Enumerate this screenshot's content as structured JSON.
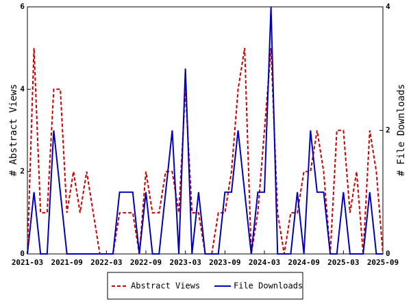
{
  "chart_data": {
    "type": "line",
    "categories": [
      "2021-03",
      null,
      null,
      null,
      null,
      null,
      "2021-09",
      null,
      null,
      null,
      null,
      null,
      "2022-03",
      null,
      null,
      null,
      null,
      null,
      "2022-09",
      null,
      null,
      null,
      null,
      null,
      "2023-03",
      null,
      null,
      null,
      null,
      null,
      "2023-09",
      null,
      null,
      null,
      null,
      null,
      "2024-03",
      null,
      null,
      null,
      null,
      null,
      "2024-09",
      null,
      null,
      null,
      null,
      null,
      "2025-03",
      null,
      null,
      null,
      null,
      null,
      "2025-09"
    ],
    "y_label": "# Abstract Views",
    "y2_label": "# File Downloads",
    "ylim": [
      0,
      6
    ],
    "yticks": [
      0,
      2,
      4,
      6
    ],
    "y2lim": [
      0,
      4
    ],
    "y2ticks": [
      0,
      2,
      4
    ],
    "series": [
      {
        "name": "Abstract Views",
        "color": "#cc0000",
        "dash": true,
        "values": [
          0,
          5,
          1,
          1,
          4,
          4,
          1,
          2,
          1,
          2,
          1,
          0,
          0,
          0,
          1,
          1,
          1,
          0,
          2,
          1,
          1,
          2,
          2,
          1,
          4,
          1,
          1,
          0,
          0,
          1,
          1,
          2,
          4,
          5,
          0,
          1,
          3,
          5,
          1,
          0,
          1,
          1,
          2,
          2,
          3,
          2,
          0,
          3,
          3,
          1,
          2,
          0,
          3,
          2,
          0
        ]
      },
      {
        "name": "File Downloads",
        "color": "#0000bb",
        "axis": "y2",
        "values": [
          0,
          1,
          0,
          0,
          2,
          1,
          0,
          0,
          0,
          0,
          0,
          0,
          0,
          0,
          1,
          1,
          1,
          0,
          1,
          0,
          0,
          1,
          2,
          0,
          3,
          0,
          1,
          0,
          0,
          0,
          1,
          1,
          2,
          1,
          0,
          1,
          1,
          4,
          0,
          0,
          0,
          1,
          0,
          2,
          1,
          1,
          0,
          0,
          1,
          0,
          0,
          0,
          1,
          0,
          0
        ]
      }
    ]
  }
}
